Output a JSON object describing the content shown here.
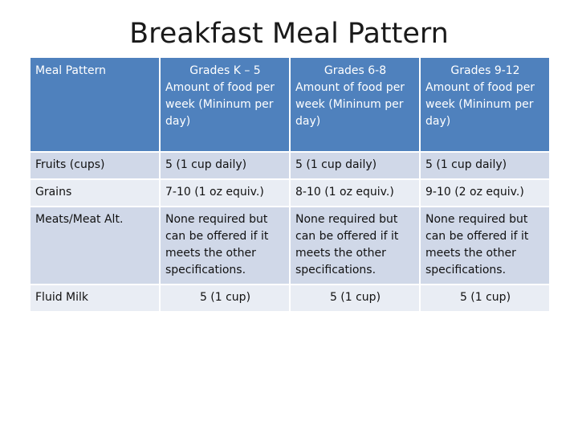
{
  "title": "Breakfast Meal Pattern",
  "table": {
    "header": {
      "first": "Meal Pattern",
      "columns": [
        {
          "grade": "Grades K – 5",
          "sub": "Amount of food per week (Mininum per day)"
        },
        {
          "grade": "Grades 6-8",
          "sub": "Amount of food per week (Mininum per day)"
        },
        {
          "grade": "Grades 9-12",
          "sub": "Amount of food per week (Mininum per day)"
        }
      ]
    },
    "rows": [
      {
        "label": "Fruits (cups)",
        "values": [
          "5 (1 cup daily)",
          "5 (1 cup daily)",
          "5 (1 cup daily)"
        ]
      },
      {
        "label": "Grains",
        "values": [
          "7-10 (1 oz equiv.)",
          "8-10 (1 oz equiv.)",
          "9-10 (2 oz equiv.)"
        ]
      },
      {
        "label": "Meats/Meat Alt.",
        "values": [
          "None required but can be offered if it meets the other specifications.",
          "None required but can be offered if it meets the other specifications.",
          "None required but can be offered if it meets the other specifications."
        ]
      },
      {
        "label": "Fluid Milk",
        "values": [
          "5 (1 cup)",
          "5 (1 cup)",
          "5 (1 cup)"
        ]
      }
    ]
  },
  "colors": {
    "header_bg": "#4f81bd",
    "row_dark": "#d0d8e8",
    "row_light": "#e9edf4"
  }
}
